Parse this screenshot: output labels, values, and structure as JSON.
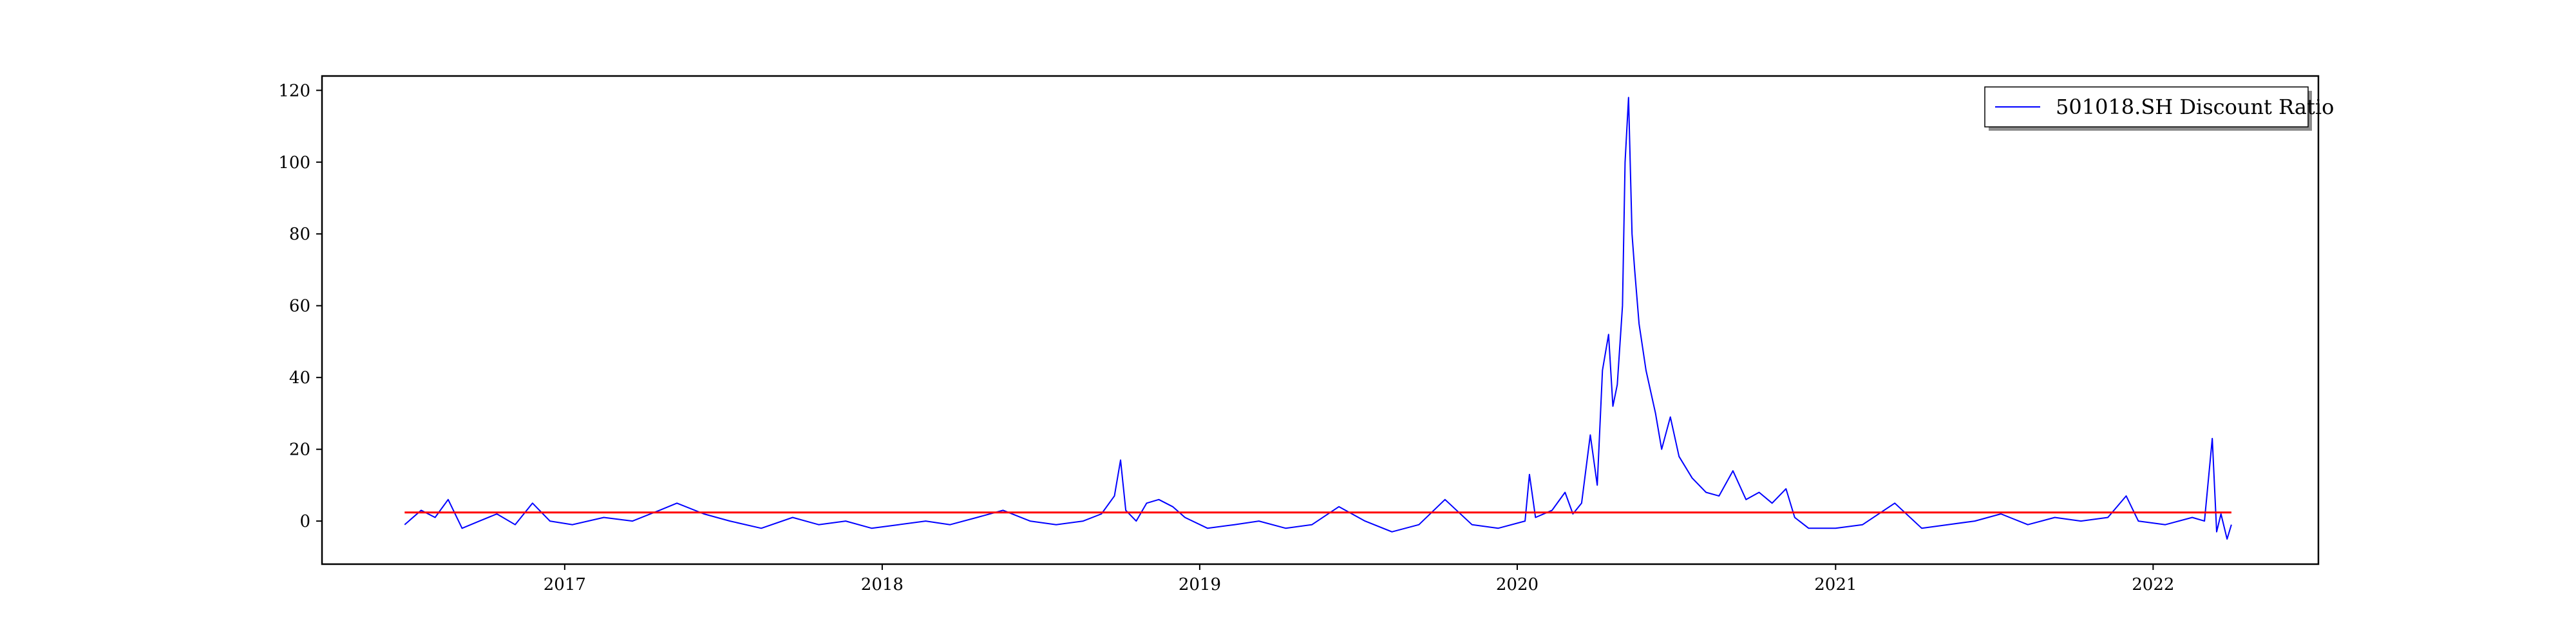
{
  "chart_data": {
    "type": "line",
    "title": "",
    "xlabel": "",
    "ylabel": "",
    "xlim": [
      "2016-03-28",
      "2022-07-10"
    ],
    "ylim": [
      -12,
      124
    ],
    "x_ticks": [
      "2017",
      "2018",
      "2019",
      "2020",
      "2021",
      "2022"
    ],
    "y_ticks": [
      0,
      20,
      40,
      60,
      80,
      100,
      120
    ],
    "grid": false,
    "legend_position": "top-right",
    "series": [
      {
        "name": "501018.SH Discount Ratio",
        "color": "#0000ff",
        "points": [
          [
            "2016-07-01",
            -1
          ],
          [
            "2016-07-20",
            3
          ],
          [
            "2016-08-05",
            1
          ],
          [
            "2016-08-20",
            6
          ],
          [
            "2016-09-05",
            -2
          ],
          [
            "2016-09-25",
            0
          ],
          [
            "2016-10-15",
            2
          ],
          [
            "2016-11-05",
            -1
          ],
          [
            "2016-11-25",
            5
          ],
          [
            "2016-12-15",
            0
          ],
          [
            "2017-01-10",
            -1
          ],
          [
            "2017-02-15",
            1
          ],
          [
            "2017-03-20",
            0
          ],
          [
            "2017-04-20",
            3
          ],
          [
            "2017-05-10",
            5
          ],
          [
            "2017-06-10",
            2
          ],
          [
            "2017-07-10",
            0
          ],
          [
            "2017-08-15",
            -2
          ],
          [
            "2017-09-20",
            1
          ],
          [
            "2017-10-20",
            -1
          ],
          [
            "2017-11-20",
            0
          ],
          [
            "2017-12-20",
            -2
          ],
          [
            "2018-01-20",
            -1
          ],
          [
            "2018-02-20",
            0
          ],
          [
            "2018-03-20",
            -1
          ],
          [
            "2018-04-20",
            1
          ],
          [
            "2018-05-20",
            3
          ],
          [
            "2018-06-20",
            0
          ],
          [
            "2018-07-20",
            -1
          ],
          [
            "2018-08-20",
            0
          ],
          [
            "2018-09-10",
            2
          ],
          [
            "2018-09-25",
            7
          ],
          [
            "2018-10-02",
            17
          ],
          [
            "2018-10-08",
            3
          ],
          [
            "2018-10-20",
            0
          ],
          [
            "2018-11-01",
            5
          ],
          [
            "2018-11-15",
            6
          ],
          [
            "2018-12-01",
            4
          ],
          [
            "2018-12-15",
            1
          ],
          [
            "2019-01-10",
            -2
          ],
          [
            "2019-02-10",
            -1
          ],
          [
            "2019-03-10",
            0
          ],
          [
            "2019-04-10",
            -2
          ],
          [
            "2019-05-10",
            -1
          ],
          [
            "2019-06-10",
            4
          ],
          [
            "2019-07-10",
            0
          ],
          [
            "2019-08-10",
            -3
          ],
          [
            "2019-09-10",
            -1
          ],
          [
            "2019-10-10",
            6
          ],
          [
            "2019-11-10",
            -1
          ],
          [
            "2019-12-10",
            -2
          ],
          [
            "2020-01-10",
            0
          ],
          [
            "2020-01-15",
            13
          ],
          [
            "2020-01-22",
            1
          ],
          [
            "2020-02-10",
            3
          ],
          [
            "2020-02-25",
            8
          ],
          [
            "2020-03-05",
            2
          ],
          [
            "2020-03-15",
            5
          ],
          [
            "2020-03-25",
            24
          ],
          [
            "2020-04-02",
            10
          ],
          [
            "2020-04-08",
            42
          ],
          [
            "2020-04-15",
            52
          ],
          [
            "2020-04-20",
            32
          ],
          [
            "2020-04-25",
            38
          ],
          [
            "2020-05-01",
            60
          ],
          [
            "2020-05-04",
            100
          ],
          [
            "2020-05-08",
            118
          ],
          [
            "2020-05-12",
            80
          ],
          [
            "2020-05-15",
            70
          ],
          [
            "2020-05-20",
            55
          ],
          [
            "2020-05-28",
            42
          ],
          [
            "2020-06-08",
            30
          ],
          [
            "2020-06-15",
            20
          ],
          [
            "2020-06-25",
            29
          ],
          [
            "2020-07-05",
            18
          ],
          [
            "2020-07-20",
            12
          ],
          [
            "2020-08-05",
            8
          ],
          [
            "2020-08-20",
            7
          ],
          [
            "2020-09-05",
            14
          ],
          [
            "2020-09-20",
            6
          ],
          [
            "2020-10-05",
            8
          ],
          [
            "2020-10-20",
            5
          ],
          [
            "2020-11-05",
            9
          ],
          [
            "2020-11-15",
            1
          ],
          [
            "2020-12-01",
            -2
          ],
          [
            "2021-01-01",
            -2
          ],
          [
            "2021-02-01",
            -1
          ],
          [
            "2021-03-10",
            5
          ],
          [
            "2021-04-10",
            -2
          ],
          [
            "2021-05-10",
            -1
          ],
          [
            "2021-06-10",
            0
          ],
          [
            "2021-07-10",
            2
          ],
          [
            "2021-08-10",
            -1
          ],
          [
            "2021-09-10",
            1
          ],
          [
            "2021-10-10",
            0
          ],
          [
            "2021-11-10",
            1
          ],
          [
            "2021-12-01",
            7
          ],
          [
            "2021-12-15",
            0
          ],
          [
            "2022-01-15",
            -1
          ],
          [
            "2022-02-15",
            1
          ],
          [
            "2022-03-01",
            0
          ],
          [
            "2022-03-10",
            23
          ],
          [
            "2022-03-15",
            -3
          ],
          [
            "2022-03-20",
            2
          ],
          [
            "2022-03-27",
            -5
          ],
          [
            "2022-04-01",
            -1
          ]
        ]
      },
      {
        "name": "",
        "color": "#ff0000",
        "points": [
          [
            "2016-07-01",
            2.4
          ],
          [
            "2022-04-01",
            2.4
          ]
        ]
      }
    ]
  }
}
